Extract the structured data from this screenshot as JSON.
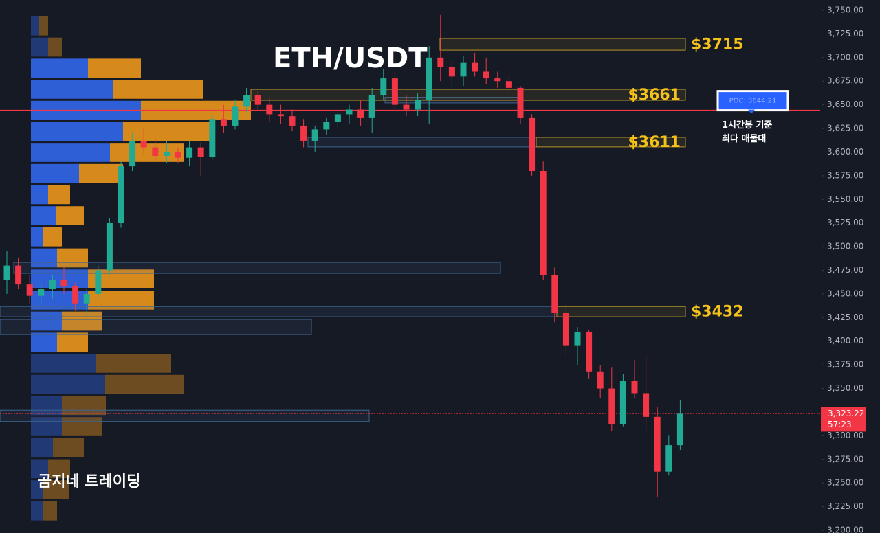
{
  "chart_data": {
    "type": "candlestick",
    "title": "ETH/USDT",
    "watermark": "곰지네 트레이딩",
    "ylim": [
      3197.1,
      3760.9
    ],
    "yticks": [
      {
        "value": 3750,
        "label": "3,750.00"
      },
      {
        "value": 3725,
        "label": "3,725.00"
      },
      {
        "value": 3700,
        "label": "3,700.00"
      },
      {
        "value": 3675,
        "label": "3,675.00"
      },
      {
        "value": 3650,
        "label": "3,650.00"
      },
      {
        "value": 3625,
        "label": "3,625.00"
      },
      {
        "value": 3600,
        "label": "3,600.00"
      },
      {
        "value": 3575,
        "label": "3,575.00"
      },
      {
        "value": 3550,
        "label": "3,550.00"
      },
      {
        "value": 3525,
        "label": "3,525.00"
      },
      {
        "value": 3500,
        "label": "3,500.00"
      },
      {
        "value": 3475,
        "label": "3,475.00"
      },
      {
        "value": 3450,
        "label": "3,450.00"
      },
      {
        "value": 3425,
        "label": "3,425.00"
      },
      {
        "value": 3400,
        "label": "3,400.00"
      },
      {
        "value": 3375,
        "label": "3,375.00"
      },
      {
        "value": 3350,
        "label": "3,350.00"
      },
      {
        "value": 3325,
        "label": "3,325.00"
      },
      {
        "value": 3300,
        "label": "3,300.00"
      },
      {
        "value": 3275,
        "label": "3,275.00"
      },
      {
        "value": 3250,
        "label": "3,250.00"
      },
      {
        "value": 3225,
        "label": "3,225.00"
      },
      {
        "value": 3200,
        "label": "3,200.00"
      }
    ],
    "grid": false,
    "up_color": "#22ab94",
    "down_color": "#f23645",
    "candles": [
      [
        3465,
        3495,
        3450,
        3480
      ],
      [
        3480,
        3488,
        3455,
        3460
      ],
      [
        3460,
        3470,
        3440,
        3448
      ],
      [
        3448,
        3462,
        3438,
        3455
      ],
      [
        3455,
        3470,
        3445,
        3465
      ],
      [
        3465,
        3478,
        3450,
        3458
      ],
      [
        3458,
        3462,
        3432,
        3440
      ],
      [
        3440,
        3455,
        3425,
        3450
      ],
      [
        3450,
        3480,
        3445,
        3475
      ],
      [
        3475,
        3530,
        3470,
        3525
      ],
      [
        3525,
        3590,
        3520,
        3585
      ],
      [
        3585,
        3620,
        3580,
        3612
      ],
      [
        3612,
        3625,
        3598,
        3605
      ],
      [
        3605,
        3615,
        3590,
        3596
      ],
      [
        3596,
        3612,
        3588,
        3600
      ],
      [
        3600,
        3605,
        3588,
        3594
      ],
      [
        3594,
        3612,
        3585,
        3605
      ],
      [
        3605,
        3610,
        3575,
        3595
      ],
      [
        3595,
        3640,
        3592,
        3635
      ],
      [
        3635,
        3650,
        3620,
        3628
      ],
      [
        3628,
        3655,
        3624,
        3648
      ],
      [
        3648,
        3668,
        3642,
        3660
      ],
      [
        3660,
        3665,
        3645,
        3650
      ],
      [
        3650,
        3658,
        3632,
        3640
      ],
      [
        3640,
        3650,
        3630,
        3638
      ],
      [
        3638,
        3645,
        3622,
        3628
      ],
      [
        3628,
        3635,
        3605,
        3612
      ],
      [
        3612,
        3628,
        3600,
        3624
      ],
      [
        3624,
        3636,
        3618,
        3632
      ],
      [
        3632,
        3644,
        3626,
        3640
      ],
      [
        3640,
        3650,
        3630,
        3645
      ],
      [
        3645,
        3655,
        3628,
        3636
      ],
      [
        3636,
        3668,
        3620,
        3660
      ],
      [
        3660,
        3688,
        3655,
        3678
      ],
      [
        3678,
        3685,
        3645,
        3650
      ],
      [
        3650,
        3660,
        3638,
        3645
      ],
      [
        3645,
        3662,
        3638,
        3655
      ],
      [
        3655,
        3712,
        3630,
        3700
      ],
      [
        3700,
        3745,
        3675,
        3690
      ],
      [
        3690,
        3698,
        3670,
        3680
      ],
      [
        3680,
        3702,
        3670,
        3695
      ],
      [
        3695,
        3705,
        3680,
        3685
      ],
      [
        3685,
        3700,
        3672,
        3678
      ],
      [
        3678,
        3685,
        3668,
        3675
      ],
      [
        3675,
        3682,
        3662,
        3668
      ],
      [
        3668,
        3670,
        3630,
        3636
      ],
      [
        3636,
        3640,
        3575,
        3580
      ],
      [
        3580,
        3590,
        3465,
        3470
      ],
      [
        3470,
        3478,
        3420,
        3430
      ],
      [
        3430,
        3440,
        3385,
        3395
      ],
      [
        3395,
        3415,
        3375,
        3410
      ],
      [
        3410,
        3412,
        3360,
        3368
      ],
      [
        3368,
        3375,
        3340,
        3350
      ],
      [
        3350,
        3372,
        3305,
        3312
      ],
      [
        3312,
        3365,
        3310,
        3358
      ],
      [
        3358,
        3380,
        3340,
        3345
      ],
      [
        3345,
        3385,
        3305,
        3320
      ],
      [
        3320,
        3330,
        3235,
        3262
      ],
      [
        3262,
        3300,
        3258,
        3290
      ],
      [
        3290,
        3338,
        3285,
        3323.22
      ]
    ],
    "profile": {
      "top": 3744.2,
      "step": 22.3,
      "value_area": [
        3387,
        3700
      ],
      "buy_color": "#2f5fd6",
      "sell_color": "#d68a1c",
      "buy": [
        12,
        25,
        83,
        120,
        160,
        134,
        115,
        70,
        25,
        37,
        18,
        38,
        83,
        83,
        45,
        38,
        95,
        108,
        45,
        45,
        32,
        25,
        18,
        18
      ],
      "sell": [
        13,
        20,
        77,
        130,
        160,
        127,
        108,
        64,
        32,
        40,
        27,
        45,
        96,
        96,
        58,
        45,
        109,
        115,
        64,
        58,
        45,
        32,
        38,
        20
      ]
    },
    "zones": [
      {
        "low": 3471.7,
        "high": 3483.3
      },
      {
        "low": 3407,
        "high": 3423
      },
      {
        "low": 3315,
        "high": 3327
      },
      {
        "low": 3605.5,
        "high": 3615.6
      },
      {
        "low": 3425.9,
        "high": 3436.7
      },
      {
        "low": 3652,
        "high": 3658
      }
    ],
    "levels": [
      {
        "label": "$3715",
        "low": 3707.8,
        "high": 3720.2
      },
      {
        "label": "$3661",
        "low": 3654.8,
        "high": 3666.4
      },
      {
        "label": "$3611",
        "low": 3605.5,
        "high": 3615.6
      },
      {
        "label": "$3432",
        "low": 3425.9,
        "high": 3436.7
      }
    ],
    "poc": {
      "value": 3644.21,
      "label": "POC: 3644.21",
      "color": "#f23645"
    },
    "annotation": [
      "1시간봉 기준",
      "최다 매물대"
    ],
    "current": {
      "value": 3323.22,
      "label": "3,323.22",
      "countdown": "57:23"
    }
  }
}
